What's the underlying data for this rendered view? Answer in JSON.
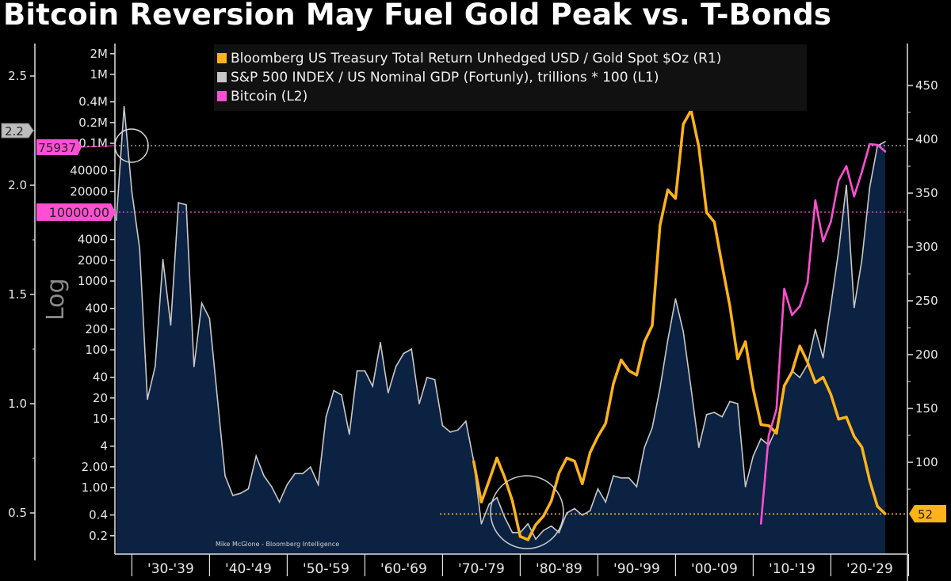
{
  "title": "Bitcoin Reversion May Fuel Gold Peak vs. T-Bonds",
  "chart_data": {
    "type": "line",
    "title": "Bitcoin Reversion May Fuel Gold Peak vs. T-Bonds",
    "attribution": "Mike McGlone - Bloomberg Intelligence",
    "axis_scale_label": "Log",
    "x_tick_labels": [
      "'30-'39",
      "'40-'49",
      "'50-'59",
      "'60-'69",
      "'70-'79",
      "'80-'89",
      "'90-'99",
      "'00-'09",
      "'10-'19",
      "'20-'29"
    ],
    "axes": {
      "L1": {
        "ticks": [
          "2.5",
          "2.0",
          "1.5",
          "1.0",
          "0.5"
        ],
        "tick_values": [
          2.5,
          2.0,
          1.5,
          1.0,
          0.5
        ],
        "scale": "linear",
        "current_value_label": "2.2"
      },
      "L2": {
        "ticks": [
          "2M",
          "1M",
          "0.4M",
          "0.2M",
          "0.1M",
          "40000",
          "20000",
          "4000",
          "2000",
          "1000",
          "400",
          "200",
          "100",
          "40",
          "20",
          "10",
          "4",
          "2.00",
          "1.00",
          "0.4",
          "0.2"
        ],
        "tick_values": [
          2000000,
          1000000,
          400000,
          200000,
          100000,
          40000,
          20000,
          4000,
          2000,
          1000,
          400,
          200,
          100,
          40,
          20,
          10,
          4,
          2,
          1,
          0.4,
          0.2
        ],
        "scale": "log",
        "current_value_label": "75937",
        "reference_label": "10000.00",
        "reference_value": 10000
      },
      "R1": {
        "ticks": [
          "450",
          "400",
          "350",
          "300",
          "250",
          "200",
          "150",
          "100"
        ],
        "tick_values": [
          450,
          400,
          350,
          300,
          250,
          200,
          150,
          100
        ],
        "scale": "linear",
        "current_value_label": "52"
      }
    },
    "legend_position": "top-center",
    "grid": false,
    "series": [
      {
        "name": "Bloomberg US Treasury Total Return Unhedged USD / Gold Spot $Oz (R1)",
        "axis": "R1",
        "color": "#ffb31a",
        "style": "line",
        "x": [
          1972,
          1973,
          1974,
          1975,
          1976,
          1977,
          1978,
          1979,
          1980,
          1981,
          1982,
          1983,
          1984,
          1985,
          1986,
          1987,
          1988,
          1989,
          1990,
          1991,
          1992,
          1993,
          1994,
          1995,
          1996,
          1997,
          1998,
          1999,
          2000,
          2001,
          2002,
          2003,
          2004,
          2005,
          2006,
          2007,
          2008,
          2009,
          2010,
          2011,
          2012,
          2013,
          2014,
          2015,
          2016,
          2017,
          2018,
          2019,
          2020,
          2021,
          2022,
          2023,
          2024,
          2025
        ],
        "y": [
          101,
          63,
          83,
          104,
          86,
          64,
          31,
          28,
          42,
          50,
          64,
          90,
          104,
          101,
          80,
          109,
          124,
          136,
          173,
          195,
          185,
          181,
          212,
          227,
          320,
          353,
          345,
          414,
          427,
          393,
          332,
          323,
          283,
          245,
          196,
          212,
          168,
          135,
          134,
          127,
          171,
          184,
          208,
          193,
          174,
          179,
          163,
          140,
          142,
          124,
          114,
          83,
          59,
          52
        ]
      },
      {
        "name": "S&P 500 INDEX / US Nominal GDP (Fortunly), trillions * 100 (L1)",
        "axis": "L1",
        "color": "#c8c8c8",
        "style": "area",
        "x": [
          1926,
          1927,
          1928,
          1929,
          1930,
          1931,
          1932,
          1933,
          1934,
          1935,
          1936,
          1937,
          1938,
          1939,
          1940,
          1941,
          1942,
          1943,
          1944,
          1945,
          1946,
          1947,
          1948,
          1949,
          1950,
          1951,
          1952,
          1953,
          1954,
          1955,
          1956,
          1957,
          1958,
          1959,
          1960,
          1961,
          1962,
          1963,
          1964,
          1965,
          1966,
          1967,
          1968,
          1969,
          1970,
          1971,
          1972,
          1973,
          1974,
          1975,
          1976,
          1977,
          1978,
          1979,
          1980,
          1981,
          1982,
          1983,
          1984,
          1985,
          1986,
          1987,
          1988,
          1989,
          1990,
          1991,
          1992,
          1993,
          1994,
          1995,
          1996,
          1997,
          1998,
          1999,
          2000,
          2001,
          2002,
          2003,
          2004,
          2005,
          2006,
          2007,
          2008,
          2009,
          2010,
          2011,
          2012,
          2013,
          2014,
          2015,
          2016,
          2017,
          2018,
          2019,
          2020,
          2021,
          2022,
          2023,
          2024,
          2025
        ],
        "y": [
          1.84,
          2.36,
          1.97,
          1.71,
          1.02,
          1.17,
          1.66,
          1.36,
          1.92,
          1.91,
          1.17,
          1.46,
          1.39,
          1.03,
          0.67,
          0.58,
          0.59,
          0.61,
          0.76,
          0.67,
          0.62,
          0.55,
          0.63,
          0.68,
          0.68,
          0.71,
          0.63,
          0.94,
          1.06,
          1.04,
          0.86,
          1.15,
          1.15,
          1.08,
          1.28,
          1.05,
          1.17,
          1.23,
          1.25,
          1.0,
          1.12,
          1.11,
          0.9,
          0.87,
          0.88,
          0.92,
          0.74,
          0.45,
          0.54,
          0.57,
          0.48,
          0.41,
          0.41,
          0.45,
          0.38,
          0.42,
          0.44,
          0.41,
          0.5,
          0.52,
          0.49,
          0.51,
          0.61,
          0.55,
          0.67,
          0.66,
          0.66,
          0.62,
          0.8,
          0.89,
          1.07,
          1.29,
          1.48,
          1.33,
          1.07,
          0.8,
          0.95,
          0.96,
          0.94,
          1.01,
          1.0,
          0.62,
          0.76,
          0.84,
          0.81,
          0.89,
          1.08,
          1.15,
          1.12,
          1.18,
          1.34,
          1.21,
          1.45,
          1.7,
          2.0,
          1.44,
          1.66,
          1.99,
          2.18,
          2.2
        ]
      },
      {
        "name": "Bitcoin (L2)",
        "axis": "L2",
        "color": "#ff4fd2",
        "style": "line",
        "x": [
          2009,
          2010,
          2011,
          2012,
          2013,
          2014,
          2015,
          2016,
          2017,
          2018,
          2019,
          2020,
          2021,
          2022,
          2023,
          2024,
          2025
        ],
        "y": [
          0.3,
          5.7,
          13.7,
          767,
          321,
          429,
          948,
          14870,
          3758,
          7280,
          28840,
          46400,
          16980,
          38550,
          97400,
          94800,
          75937
        ]
      }
    ]
  }
}
